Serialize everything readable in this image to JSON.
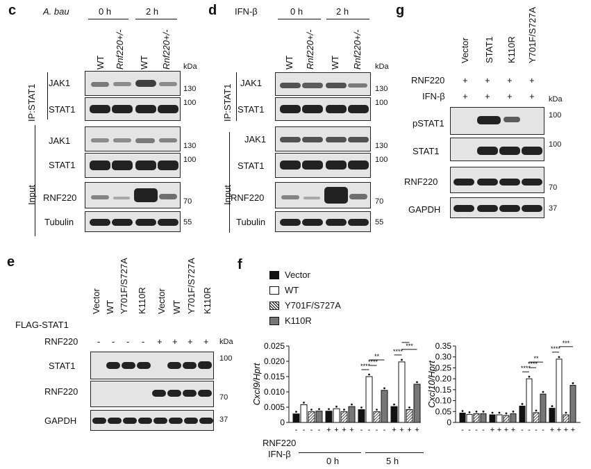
{
  "panel_c": {
    "letter": "c",
    "condition_label": "A. bau",
    "times": [
      "0 h",
      "2 h"
    ],
    "lanes": [
      "WT",
      "Rnf220+/-",
      "WT",
      "Rnf220+/-"
    ],
    "kda_label": "kDa",
    "ip_label": "IP:STAT1",
    "input_label": "Input",
    "rows": [
      {
        "name": "JAK1",
        "kda": "130"
      },
      {
        "name": "STAT1",
        "kda": "100"
      },
      {
        "name": "JAK1",
        "kda": "130"
      },
      {
        "name": "STAT1",
        "kda": "100"
      },
      {
        "name": "RNF220",
        "kda": "70"
      },
      {
        "name": "Tubulin",
        "kda": "55"
      }
    ]
  },
  "panel_d": {
    "letter": "d",
    "condition_label": "IFN-β",
    "times": [
      "0 h",
      "2 h"
    ],
    "lanes": [
      "WT",
      "Rnf220+/-",
      "WT",
      "Rnf220+/-"
    ],
    "kda_label": "kDa",
    "ip_label": "IP:STAT1",
    "input_label": "Input",
    "rows": [
      {
        "name": "JAK1",
        "kda": "130"
      },
      {
        "name": "STAT1",
        "kda": "100"
      },
      {
        "name": "JAK1",
        "kda": "130"
      },
      {
        "name": "STAT1",
        "kda": "100"
      },
      {
        "name": "RNF220",
        "kda": "70"
      },
      {
        "name": "Tubulin",
        "kda": "55"
      }
    ]
  },
  "panel_g": {
    "letter": "g",
    "lanes": [
      "Vector",
      "STAT1",
      "K110R",
      "Y701F/S727A"
    ],
    "treatments": [
      {
        "name": "RNF220",
        "signs": [
          "+",
          "+",
          "+",
          "+"
        ]
      },
      {
        "name": "IFN-β",
        "signs": [
          "+",
          "+",
          "+",
          "+"
        ]
      }
    ],
    "kda_label": "kDa",
    "rows": [
      {
        "name": "pSTAT1",
        "kda": "100"
      },
      {
        "name": "STAT1",
        "kda": "100"
      },
      {
        "name": "RNF220",
        "kda": "70"
      },
      {
        "name": "GAPDH",
        "kda": "37"
      }
    ]
  },
  "panel_e": {
    "letter": "e",
    "lanes": [
      "Vector",
      "WT",
      "Y701F/S727A",
      "K110R",
      "Vector",
      "WT",
      "Y701F/S727A",
      "K110R"
    ],
    "flag_label": "FLAG-STAT1",
    "rnf_label": "RNF220",
    "rnf_signs": [
      "-",
      "-",
      "-",
      "-",
      "+",
      "+",
      "+",
      "+"
    ],
    "kda_label": "kDa",
    "rows": [
      {
        "name": "STAT1",
        "kda": "100"
      },
      {
        "name": "RNF220",
        "kda": "70"
      },
      {
        "name": "GAPDH",
        "kda": "37"
      }
    ]
  },
  "panel_f": {
    "letter": "f",
    "legend": [
      "Vector",
      "WT",
      "Y701F/S727A",
      "K110R"
    ],
    "rnf_label": "RNF220",
    "ifn_label": "IFN-β",
    "rnf_signs": [
      "-",
      "-",
      "-",
      "-",
      "+",
      "+",
      "+",
      "+",
      "-",
      "-",
      "-",
      "-",
      "+",
      "+",
      "+",
      "+"
    ],
    "time_labels": [
      "0 h",
      "5 h"
    ],
    "sig_stars": [
      "****",
      "**",
      "****",
      "***",
      "****",
      "***",
      "****",
      "**"
    ]
  },
  "chart_data": [
    {
      "type": "bar",
      "ylabel": "Cxcl9/Hprt",
      "ylim": [
        0,
        0.025
      ],
      "yticks": [
        "0",
        "0.005",
        "0.010",
        "0.015",
        "0.020",
        "0.025"
      ],
      "categories": [
        "0 h RNF220-",
        "0 h RNF220+",
        "5 h RNF220-",
        "5 h RNF220+"
      ],
      "series": [
        {
          "name": "Vector",
          "values": [
            0.0028,
            0.0037,
            0.0042,
            0.0052
          ]
        },
        {
          "name": "WT",
          "values": [
            0.0058,
            0.0045,
            0.015,
            0.0198
          ]
        },
        {
          "name": "Y701F/S727A",
          "values": [
            0.0035,
            0.0035,
            0.0035,
            0.0042
          ]
        },
        {
          "name": "K110R",
          "values": [
            0.0037,
            0.0052,
            0.0105,
            0.0125
          ]
        }
      ]
    },
    {
      "type": "bar",
      "ylabel": "Cxcl10/Hprt",
      "ylim": [
        0,
        0.35
      ],
      "yticks": [
        "0",
        "0.05",
        "0.10",
        "0.15",
        "0.20",
        "0.25",
        "0.30",
        "0.35"
      ],
      "categories": [
        "0 h RNF220-",
        "0 h RNF220+",
        "5 h RNF220-",
        "5 h RNF220+"
      ],
      "series": [
        {
          "name": "Vector",
          "values": [
            0.043,
            0.035,
            0.075,
            0.065
          ]
        },
        {
          "name": "WT",
          "values": [
            0.037,
            0.035,
            0.2,
            0.29
          ]
        },
        {
          "name": "Y701F/S727A",
          "values": [
            0.04,
            0.032,
            0.045,
            0.035
          ]
        },
        {
          "name": "K110R",
          "values": [
            0.04,
            0.04,
            0.13,
            0.17
          ]
        }
      ]
    }
  ]
}
